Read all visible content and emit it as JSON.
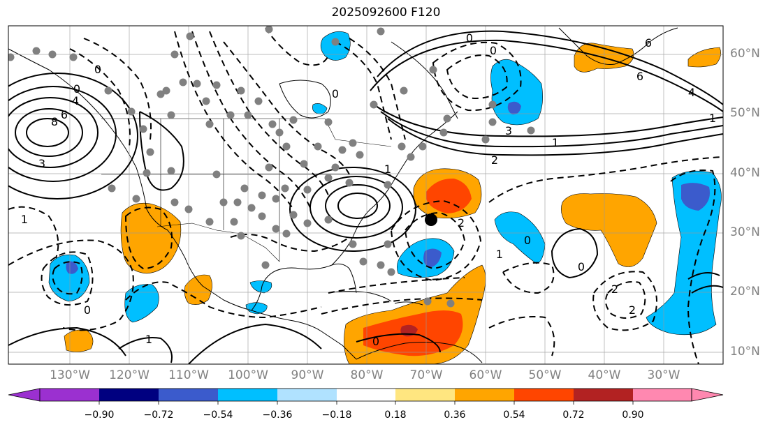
{
  "title": "2025092600 F120",
  "lat_labels": [
    "60°N",
    "50°N",
    "40°N",
    "30°N",
    "20°N",
    "10°N"
  ],
  "lon_labels": [
    "130°W",
    "120°W",
    "110°W",
    "100°W",
    "90°W",
    "80°W",
    "70°W",
    "60°W",
    "50°W",
    "40°W",
    "30°W"
  ],
  "colorbar": {
    "ticks": [
      "−0.90",
      "−0.72",
      "−0.54",
      "−0.36",
      "−0.18",
      "0.18",
      "0.36",
      "0.54",
      "0.72",
      "0.90"
    ],
    "colors": [
      "#9b30d0",
      "#000080",
      "#3b5bcc",
      "#00bfff",
      "#b0e2ff",
      "#ffffff",
      "#ffe680",
      "#ffa500",
      "#ff4500",
      "#b22222",
      "#ff88b0"
    ]
  },
  "colors": {
    "orange": "#ffa500",
    "red_orange": "#ff4500",
    "dark_red": "#b22222",
    "deep_sky": "#00bfff",
    "royal_blue": "#3b5bcc",
    "station_dots": "#808080"
  },
  "contour_labels": [
    "0",
    "0",
    "0",
    "0",
    "0",
    "0",
    "0",
    "0",
    "0",
    "1",
    "1",
    "1",
    "1",
    "1",
    "1",
    "2",
    "2",
    "2",
    "2",
    "3",
    "3",
    "4",
    "4",
    "6",
    "6",
    "6",
    "8"
  ]
}
